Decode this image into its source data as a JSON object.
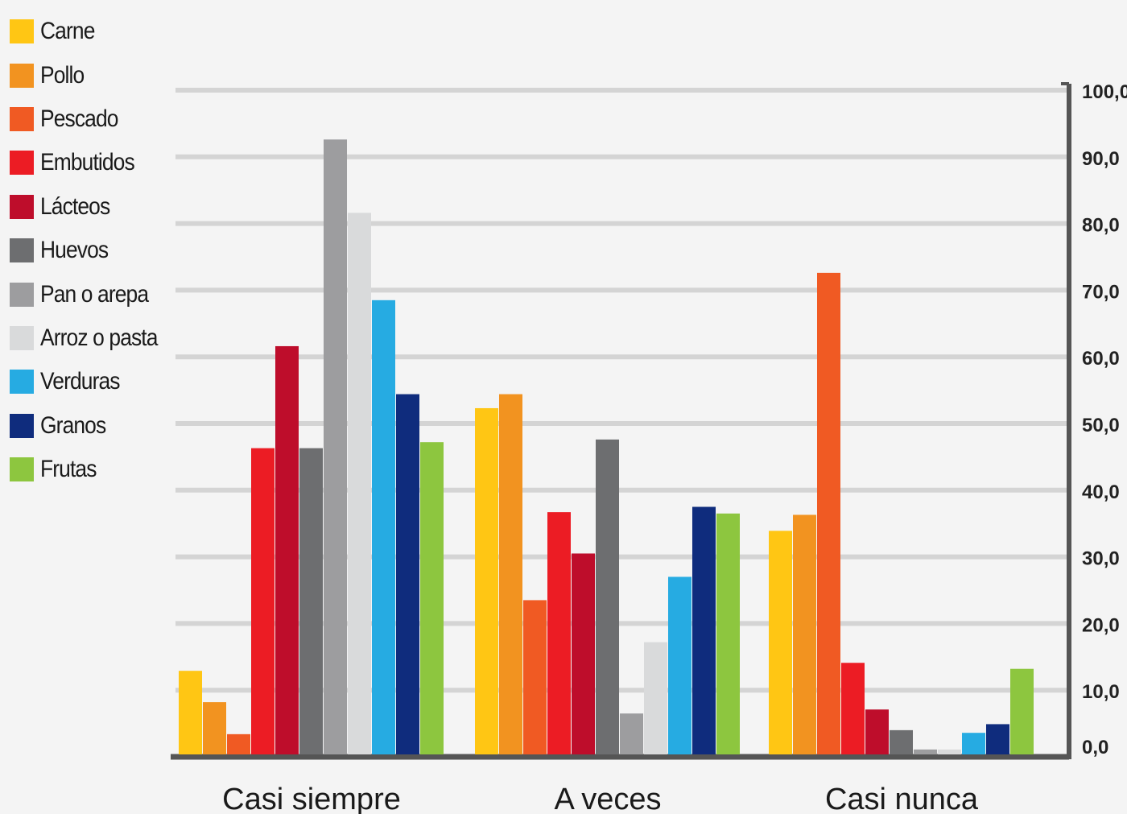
{
  "chart_data": {
    "type": "bar",
    "categories": [
      "Casi siempre",
      "A veces",
      "Casi nunca"
    ],
    "ylim": [
      0,
      100
    ],
    "y_ticks": [
      {
        "value": 100,
        "label": "100,0"
      },
      {
        "value": 90,
        "label": "90,0"
      },
      {
        "value": 80,
        "label": "80,0"
      },
      {
        "value": 70,
        "label": "70,0"
      },
      {
        "value": 60,
        "label": "60,0"
      },
      {
        "value": 50,
        "label": "50,0"
      },
      {
        "value": 40,
        "label": "40,0"
      },
      {
        "value": 30,
        "label": "30,0"
      },
      {
        "value": 20,
        "label": "20,0"
      },
      {
        "value": 10,
        "label": "10,0"
      },
      {
        "value": 0,
        "label": "0,0"
      }
    ],
    "y_axis_side": "right",
    "grid": true,
    "legend_position": "top-left",
    "series": [
      {
        "name": "Carne",
        "color": "#ffc614",
        "values": [
          12.9,
          52.3,
          33.9
        ]
      },
      {
        "name": "Pollo",
        "color": "#f29320",
        "values": [
          8.2,
          54.4,
          36.3
        ]
      },
      {
        "name": "Pescado",
        "color": "#f05a23",
        "values": [
          3.4,
          23.5,
          72.6
        ]
      },
      {
        "name": "Embutidos",
        "color": "#ec1c24",
        "values": [
          46.3,
          36.7,
          14.1
        ]
      },
      {
        "name": "Lácteos",
        "color": "#be0d2b",
        "values": [
          61.6,
          30.5,
          7.1
        ]
      },
      {
        "name": "Huevos",
        "color": "#6d6e70",
        "values": [
          46.3,
          47.6,
          4.0
        ]
      },
      {
        "name": "Pan o arepa",
        "color": "#9d9d9f",
        "values": [
          92.6,
          6.5,
          1.1
        ]
      },
      {
        "name": "Arroz o pasta",
        "color": "#d9dadb",
        "values": [
          81.6,
          17.2,
          1.1
        ]
      },
      {
        "name": "Verduras",
        "color": "#26abe2",
        "values": [
          68.5,
          27.0,
          3.6
        ]
      },
      {
        "name": "Granos",
        "color": "#0f2c7d",
        "values": [
          54.4,
          37.5,
          4.9
        ]
      },
      {
        "name": "Frutas",
        "color": "#8dc63f",
        "values": [
          47.2,
          36.5,
          13.2
        ]
      }
    ]
  }
}
